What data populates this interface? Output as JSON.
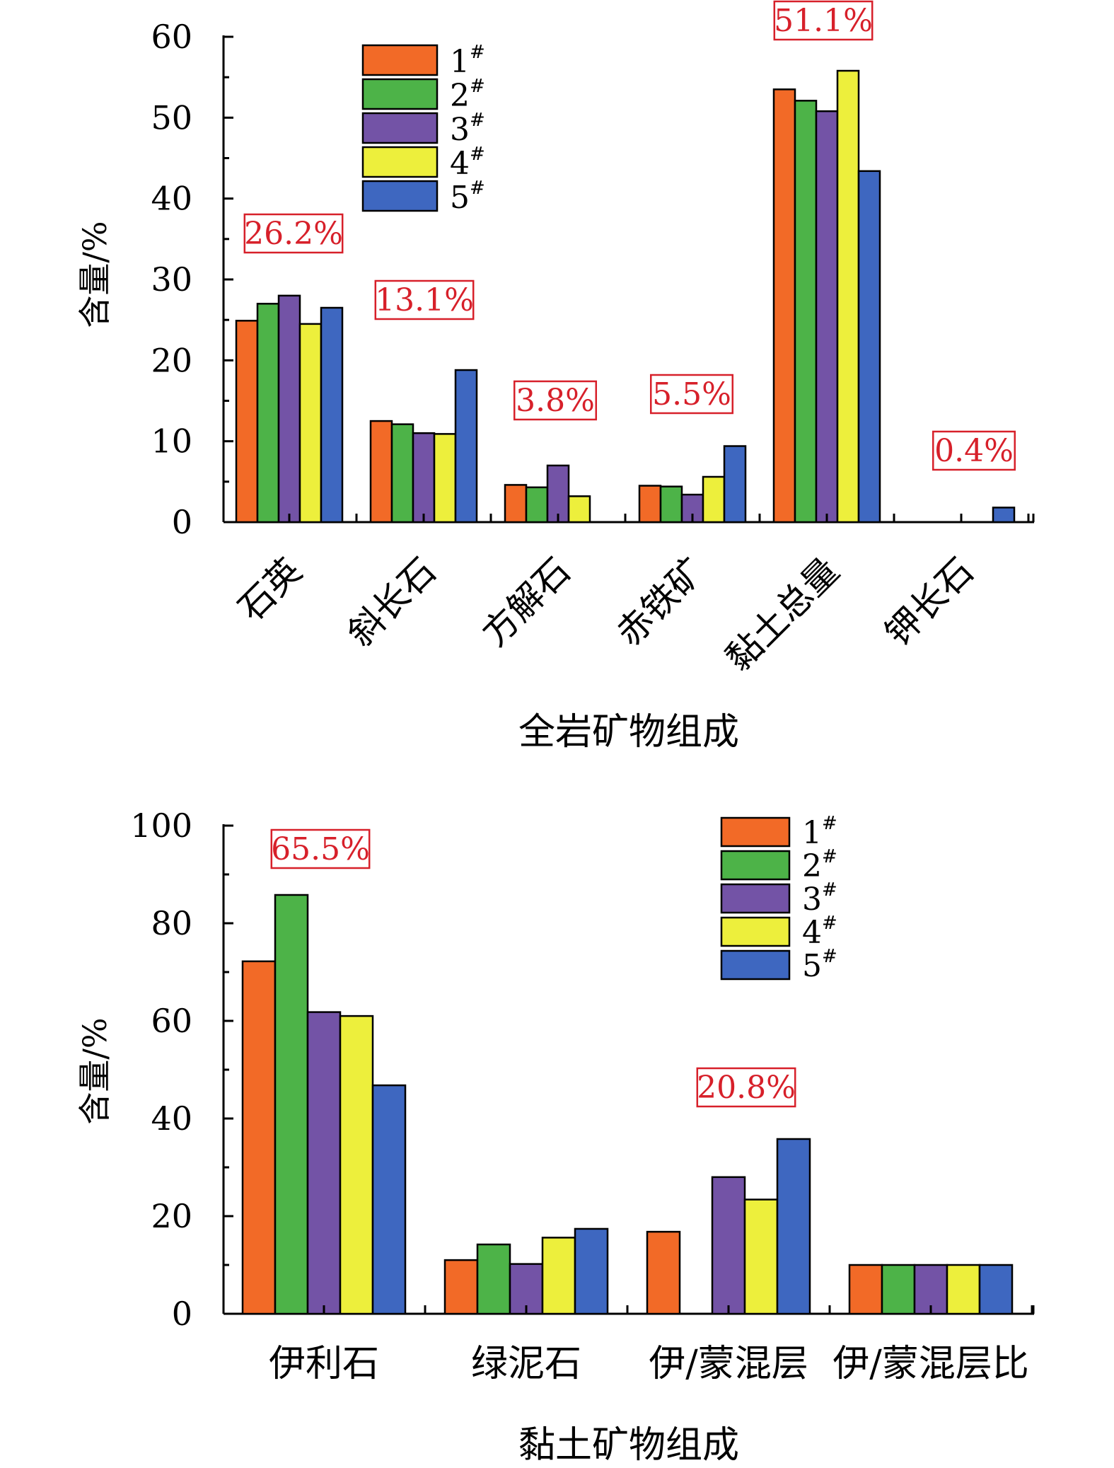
{
  "series_colors": [
    "#F26A27",
    "#4DB348",
    "#7353A6",
    "#EDEF3C",
    "#3E67C0"
  ],
  "annotation_color": "#D7202A",
  "chart_data": [
    {
      "type": "bar",
      "title": "",
      "ylabel": "含量/%",
      "xlabel": "全岩矿物组成",
      "ylim": [
        0,
        60
      ],
      "yticks": [
        "0",
        "10",
        "20",
        "30",
        "40",
        "50",
        "60"
      ],
      "grid": false,
      "legend_position": "top-center",
      "categories": [
        "石英",
        "斜长石",
        "方解石",
        "赤铁矿",
        "黏土总量",
        "钾长石"
      ],
      "series": [
        {
          "name": "1#",
          "values": [
            24.9,
            12.5,
            4.6,
            4.5,
            53.5,
            0
          ]
        },
        {
          "name": "2#",
          "values": [
            27.0,
            12.1,
            4.3,
            4.4,
            52.1,
            0
          ]
        },
        {
          "name": "3#",
          "values": [
            28.0,
            11.0,
            7.0,
            3.4,
            50.8,
            0
          ]
        },
        {
          "name": "4#",
          "values": [
            24.5,
            10.9,
            3.2,
            5.6,
            55.8,
            0
          ]
        },
        {
          "name": "5#",
          "values": [
            26.5,
            18.8,
            0,
            9.4,
            43.4,
            1.8
          ]
        }
      ],
      "annotations": [
        "26.2%",
        "13.1%",
        "3.8%",
        "5.5%",
        "51.1%",
        "0.4%"
      ]
    },
    {
      "type": "bar",
      "title": "",
      "ylabel": "含量/%",
      "xlabel": "黏土矿物组成",
      "ylim": [
        0,
        100
      ],
      "yticks": [
        "0",
        "20",
        "40",
        "60",
        "80",
        "100"
      ],
      "grid": false,
      "legend_position": "top-right",
      "categories": [
        "伊利石",
        "绿泥石",
        "伊/蒙混层",
        "伊/蒙混层比"
      ],
      "series": [
        {
          "name": "1#",
          "values": [
            72.2,
            11.0,
            16.8,
            10.0
          ]
        },
        {
          "name": "2#",
          "values": [
            85.8,
            14.2,
            0,
            10.0
          ]
        },
        {
          "name": "3#",
          "values": [
            61.8,
            10.2,
            28.0,
            10.0
          ]
        },
        {
          "name": "4#",
          "values": [
            61.0,
            15.6,
            23.4,
            10.0
          ]
        },
        {
          "name": "5#",
          "values": [
            46.8,
            17.4,
            35.8,
            10.0
          ]
        }
      ],
      "annotations": [
        "65.5%",
        "",
        "20.8%",
        ""
      ]
    }
  ]
}
